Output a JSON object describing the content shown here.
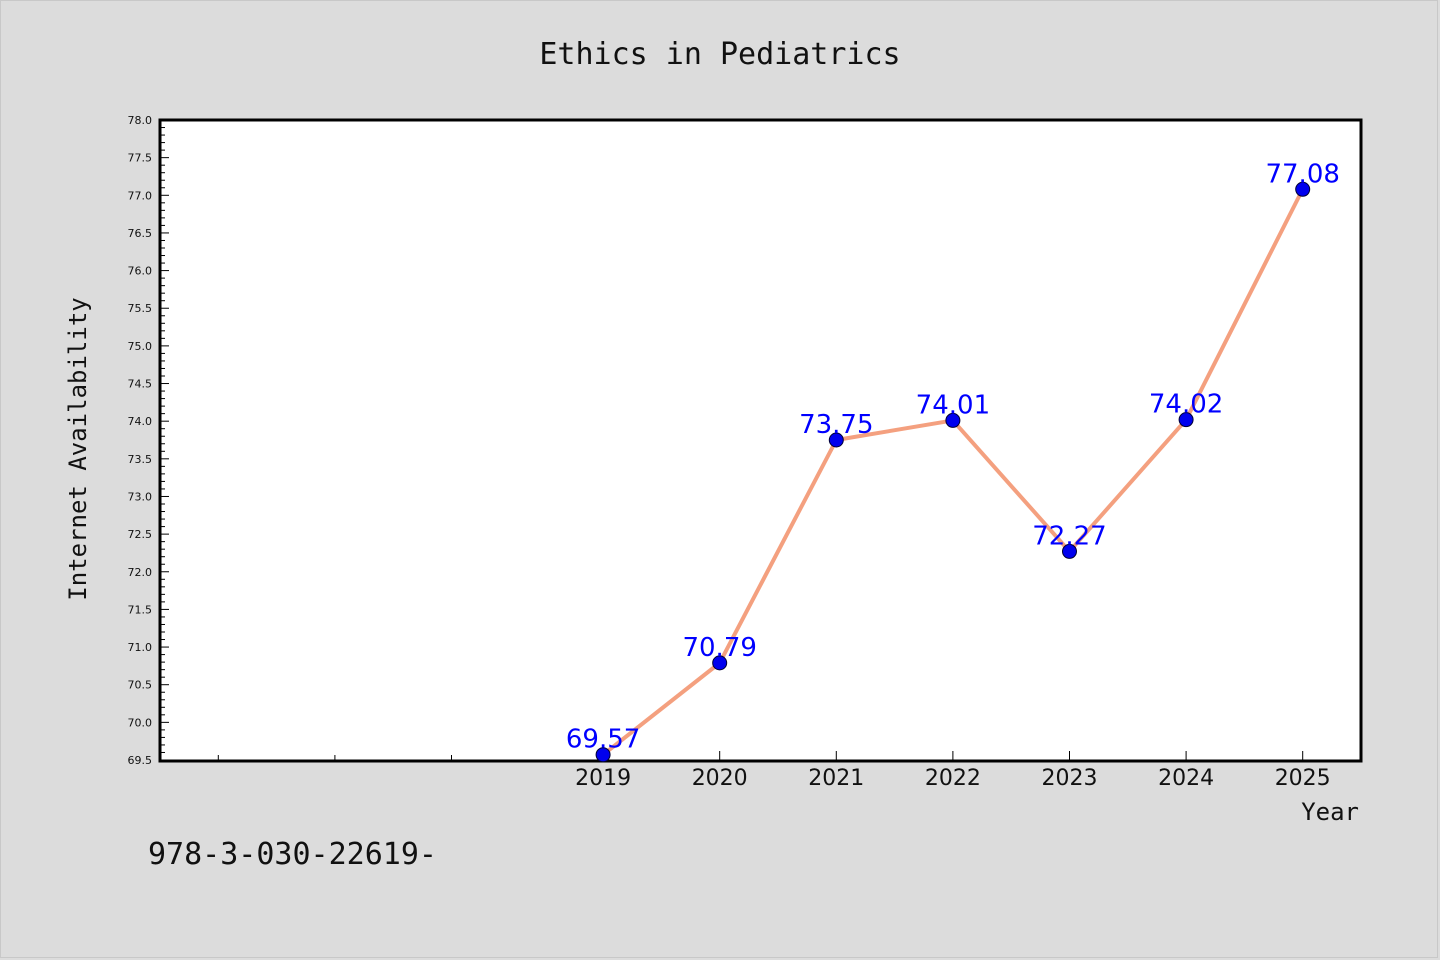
{
  "chart_data": {
    "type": "line",
    "title": "Ethics in Pediatrics",
    "xlabel": "Year",
    "ylabel": "Internet Availability",
    "x": [
      2019,
      2020,
      2021,
      2022,
      2023,
      2024,
      2025
    ],
    "x_ticks": [
      "2019",
      "2020",
      "2021",
      "2022",
      "2023",
      "2024",
      "2025"
    ],
    "xlim": [
      2015.2,
      2025.5
    ],
    "ylim": [
      69.5,
      78.0
    ],
    "y_ticks": [
      "69.5",
      "70.0",
      "70.5",
      "71.0",
      "71.5",
      "72.0",
      "72.5",
      "73.0",
      "73.5",
      "74.0",
      "74.5",
      "75.0",
      "75.5",
      "76.0",
      "76.5",
      "77.0",
      "77.5",
      "78.0"
    ],
    "series": [
      {
        "values": [
          69.57,
          70.79,
          73.75,
          74.01,
          72.27,
          74.02,
          77.08
        ],
        "data_labels": [
          "69.57",
          "70.79",
          "73.75",
          "74.01",
          "72.27",
          "74.02",
          "77.08"
        ],
        "line_color": "#f4a07f",
        "marker_color": "#0000ee"
      }
    ],
    "label_color": "#0000ff",
    "grid": false,
    "legend": "none"
  },
  "footer": {
    "isbn": "978-3-030-22619-"
  }
}
